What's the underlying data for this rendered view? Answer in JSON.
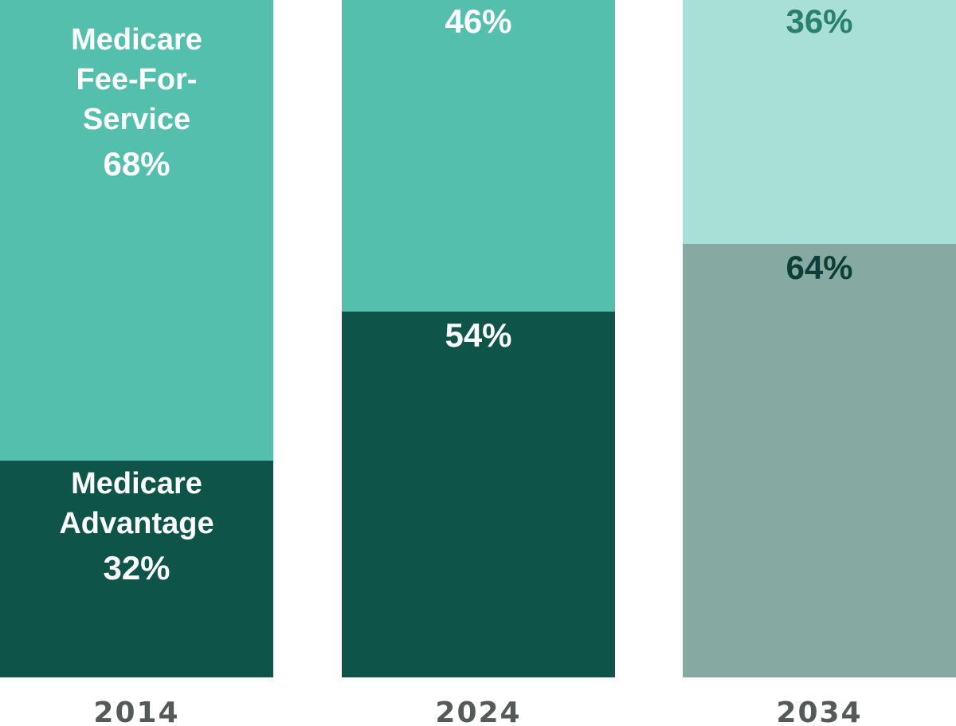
{
  "chart_data": {
    "type": "bar",
    "stacked": true,
    "categories": [
      "2014",
      "2024",
      "2034"
    ],
    "ylim": [
      0,
      100
    ],
    "grid": false,
    "series": [
      {
        "name": "Medicare Advantage",
        "values": [
          32,
          54,
          64
        ],
        "labels": [
          "32%",
          "54%",
          "64%"
        ],
        "colors": [
          "#0e5448",
          "#0e5448",
          "#86aaa2"
        ],
        "label_colors": [
          "#ffffff",
          "#ffffff",
          "#0e3f36"
        ]
      },
      {
        "name": "Medicare Fee-For-Service",
        "values": [
          68,
          46,
          36
        ],
        "labels": [
          "68%",
          "46%",
          "36%"
        ],
        "colors": [
          "#55bfad",
          "#55bfad",
          "#a8dfd6"
        ],
        "label_colors": [
          "#ffffff",
          "#ffffff",
          "#2a7f6f"
        ]
      }
    ],
    "inline_series_labels": {
      "Medicare Advantage": [
        "Medicare",
        "Advantage"
      ],
      "Medicare Fee-For-Service": [
        "Medicare",
        "Fee-For-",
        "Service"
      ]
    },
    "year_label_color": "#555a58"
  }
}
